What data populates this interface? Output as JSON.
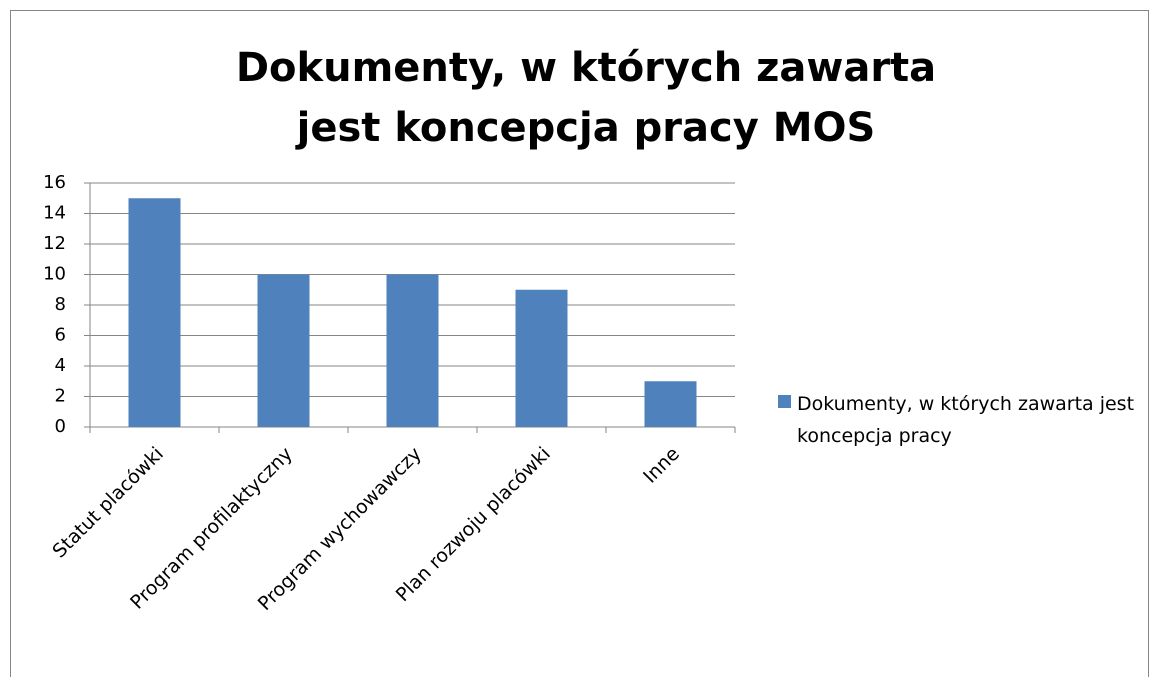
{
  "chart_data": {
    "type": "bar",
    "title": "Dokumenty, w których zawarta jest koncepcja pracy MOS",
    "categories": [
      "Statut placówki",
      "Program profilaktyczny",
      "Program wychowawczy",
      "Plan rozwoju placówki",
      "Inne"
    ],
    "series": [
      {
        "name": "Dokumenty, w których zawarta jest koncepcja pracy",
        "color": "#4f81bd",
        "values": [
          15,
          10,
          10,
          9,
          3
        ]
      }
    ],
    "ylim": [
      0,
      16
    ],
    "yticks": [
      0,
      2,
      4,
      6,
      8,
      10,
      12,
      14,
      16
    ],
    "grid": true,
    "legend": "right"
  }
}
